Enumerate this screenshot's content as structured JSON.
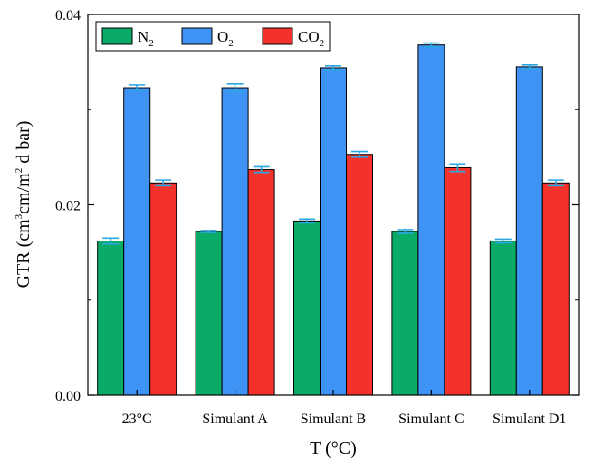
{
  "chart_data": {
    "type": "bar",
    "title": "",
    "xlabel": "T (°C)",
    "ylabel": {
      "text_a": "GTR (cm",
      "sup_a": "3",
      "text_b": "cm/m",
      "sup_b": "2",
      "text_c": " d bar)"
    },
    "categories": [
      "23°C",
      "Simulant A",
      "Simulant B",
      "Simulant C",
      "Simulant D1"
    ],
    "ylim": [
      0,
      0.04
    ],
    "yticks": [
      0.0,
      0.02,
      0.04
    ],
    "ytick_labels": [
      "0.00",
      "0.02",
      "0.04"
    ],
    "grid": false,
    "legend_position": "top-left",
    "series": [
      {
        "name": "N",
        "subscript": "2",
        "color": "#0aab66",
        "values": [
          0.0162,
          0.0172,
          0.0183,
          0.0172,
          0.0162
        ],
        "errors": [
          0.0003,
          0.0001,
          0.0002,
          0.0002,
          0.0002
        ]
      },
      {
        "name": "O",
        "subscript": "2",
        "color": "#3f93f4",
        "values": [
          0.0323,
          0.0323,
          0.0344,
          0.0368,
          0.0345
        ],
        "errors": [
          0.0003,
          0.0004,
          0.0002,
          0.0002,
          0.0002
        ]
      },
      {
        "name": "CO",
        "subscript": "2",
        "color": "#f5312c",
        "values": [
          0.0223,
          0.0237,
          0.0253,
          0.0239,
          0.0223
        ],
        "errors": [
          0.0003,
          0.0003,
          0.0003,
          0.0004,
          0.0003
        ]
      }
    ],
    "error_bar_color": "#2aa7e0"
  }
}
